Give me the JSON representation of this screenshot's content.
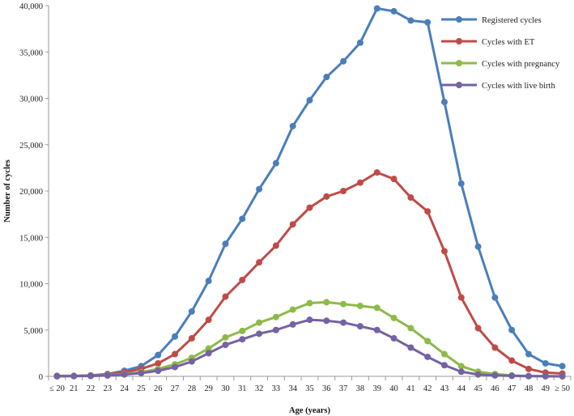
{
  "chart_data": {
    "type": "line",
    "title": "",
    "xlabel": "Age (years)",
    "ylabel": "Number of cycles",
    "ylim": [
      0,
      40000
    ],
    "yticks": [
      0,
      5000,
      10000,
      15000,
      20000,
      25000,
      30000,
      35000,
      40000
    ],
    "ytick_labels": [
      "0",
      "5,000",
      "10,000",
      "15,000",
      "20,000",
      "25,000",
      "30,000",
      "35,000",
      "40,000"
    ],
    "grid": false,
    "legend_position": "top-right",
    "categories": [
      "≤ 20",
      "21",
      "22",
      "23",
      "24",
      "25",
      "26",
      "27",
      "28",
      "29",
      "30",
      "31",
      "32",
      "33",
      "34",
      "35",
      "36",
      "37",
      "38",
      "39",
      "40",
      "41",
      "42",
      "43",
      "44",
      "45",
      "46",
      "47",
      "48",
      "49",
      "≥ 50"
    ],
    "series": [
      {
        "name": "Registered cycles",
        "color": "#4a7ebb",
        "values": [
          50,
          50,
          100,
          250,
          600,
          1100,
          2300,
          4300,
          7000,
          10300,
          14300,
          17000,
          20200,
          23000,
          27000,
          29800,
          32300,
          34000,
          36000,
          39700,
          39400,
          38400,
          38200,
          29600,
          20800,
          14000,
          8500,
          5000,
          2400,
          1400,
          1100
        ]
      },
      {
        "name": "Cycles with ET",
        "color": "#be4b48",
        "values": [
          30,
          40,
          80,
          200,
          450,
          800,
          1400,
          2400,
          4100,
          6100,
          8600,
          10400,
          12300,
          14100,
          16400,
          18200,
          19400,
          20000,
          20900,
          22000,
          21300,
          19300,
          17800,
          13500,
          8500,
          5200,
          3100,
          1700,
          800,
          400,
          300
        ]
      },
      {
        "name": "Cycles with pregnancy",
        "color": "#8dba48",
        "values": [
          20,
          30,
          50,
          120,
          250,
          450,
          800,
          1300,
          2000,
          3000,
          4200,
          4900,
          5800,
          6400,
          7200,
          7900,
          8000,
          7800,
          7600,
          7400,
          6300,
          5200,
          3800,
          2400,
          1100,
          500,
          250,
          100,
          40,
          20,
          10
        ]
      },
      {
        "name": "Cycles with live birth",
        "color": "#7462a3",
        "values": [
          10,
          20,
          40,
          90,
          200,
          350,
          600,
          1000,
          1600,
          2500,
          3400,
          4000,
          4600,
          5000,
          5600,
          6100,
          6000,
          5800,
          5400,
          5000,
          4100,
          3100,
          2100,
          1200,
          500,
          200,
          100,
          50,
          20,
          10,
          5
        ]
      }
    ]
  }
}
